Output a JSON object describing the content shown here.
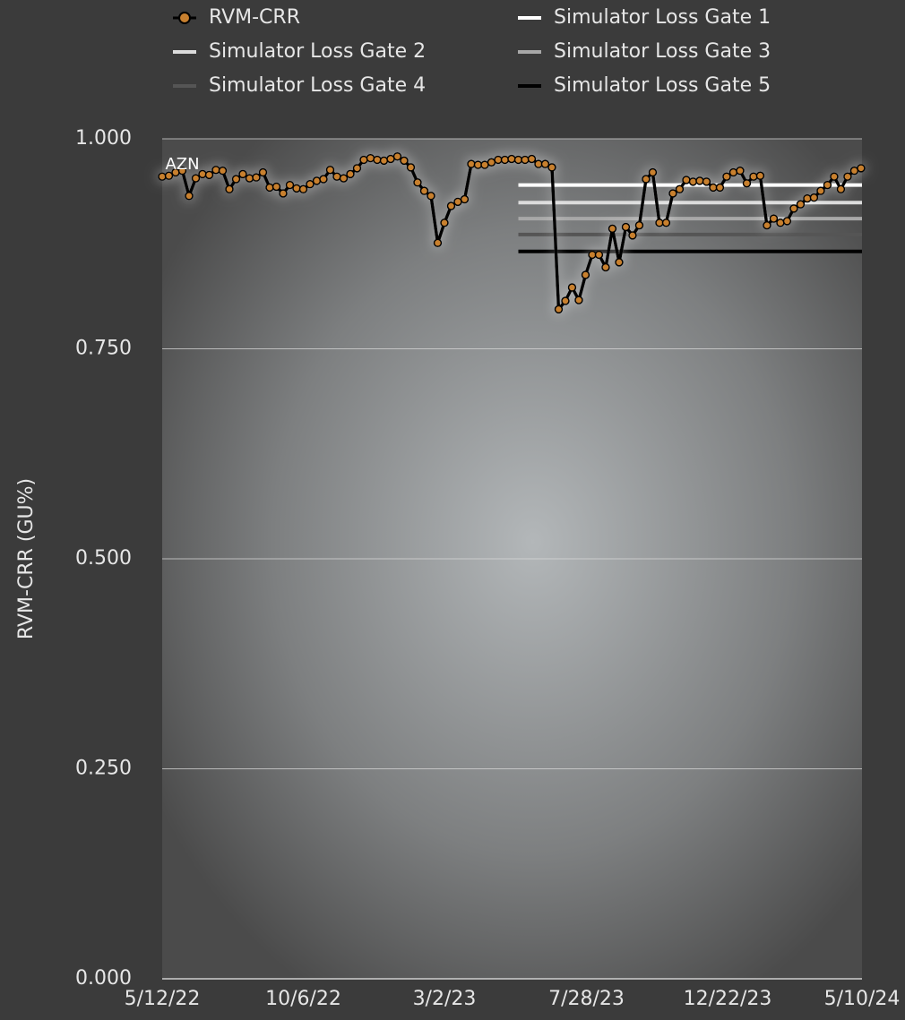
{
  "chart_data": {
    "type": "line",
    "ylabel": "RVM-CRR (GU%)",
    "annotations": [
      {
        "text": "AZN",
        "x": "5/19/22",
        "y": 0.97
      }
    ],
    "xlim": [
      "5/12/22",
      "5/10/24"
    ],
    "xticks": [
      "5/12/22",
      "10/6/22",
      "3/2/23",
      "7/28/23",
      "12/22/23",
      "5/10/24"
    ],
    "ylim": [
      0,
      1
    ],
    "yticks": [
      {
        "value": 0,
        "label": "0.000"
      },
      {
        "value": 0.25,
        "label": "0.250"
      },
      {
        "value": 0.5,
        "label": "0.500"
      },
      {
        "value": 0.75,
        "label": "0.750"
      },
      {
        "value": 1,
        "label": "1.000"
      }
    ],
    "grid": true,
    "series": [
      {
        "name": "RVM-CRR",
        "color": "#c8802f",
        "marker": true,
        "x": [
          "5/12/22",
          "5/19/22",
          "5/26/22",
          "6/2/22",
          "6/9/22",
          "6/16/22",
          "6/23/22",
          "6/30/22",
          "7/7/22",
          "7/14/22",
          "7/21/22",
          "7/28/22",
          "8/4/22",
          "8/11/22",
          "8/18/22",
          "8/25/22",
          "9/1/22",
          "9/8/22",
          "9/15/22",
          "9/22/22",
          "9/29/22",
          "10/6/22",
          "10/13/22",
          "10/20/22",
          "10/27/22",
          "11/3/22",
          "11/10/22",
          "11/17/22",
          "11/24/22",
          "12/1/22",
          "12/8/22",
          "12/15/22",
          "12/22/22",
          "12/29/22",
          "1/5/23",
          "1/12/23",
          "1/19/23",
          "1/26/23",
          "2/2/23",
          "2/9/23",
          "2/16/23",
          "2/23/23",
          "3/2/23",
          "3/9/23",
          "3/16/23",
          "3/23/23",
          "3/30/23",
          "4/6/23",
          "4/13/23",
          "4/20/23",
          "4/27/23",
          "5/4/23",
          "5/11/23",
          "5/18/23",
          "5/25/23",
          "6/1/23",
          "6/8/23",
          "6/15/23",
          "6/22/23",
          "6/29/23",
          "7/6/23",
          "7/13/23",
          "7/20/23",
          "7/27/23",
          "8/3/23",
          "8/10/23",
          "8/17/23",
          "8/24/23",
          "8/31/23",
          "9/7/23",
          "9/14/23",
          "9/21/23",
          "9/28/23",
          "10/5/23",
          "10/12/23",
          "10/19/23",
          "10/26/23",
          "11/2/23",
          "11/9/23",
          "11/16/23",
          "11/23/23",
          "11/30/23",
          "12/7/23",
          "12/14/23",
          "12/21/23",
          "12/28/23",
          "1/4/24",
          "1/11/24",
          "1/18/24",
          "1/25/24",
          "2/1/24",
          "2/8/24",
          "2/15/24",
          "2/22/24",
          "2/29/24",
          "3/7/24",
          "3/14/24",
          "3/21/24",
          "3/28/24",
          "4/4/24",
          "4/11/24",
          "4/18/24",
          "4/25/24",
          "5/2/24",
          "5/9/24"
        ],
        "values": [
          0.955,
          0.956,
          0.96,
          0.962,
          0.932,
          0.953,
          0.958,
          0.957,
          0.963,
          0.962,
          0.94,
          0.952,
          0.958,
          0.953,
          0.954,
          0.96,
          0.942,
          0.943,
          0.935,
          0.945,
          0.941,
          0.94,
          0.946,
          0.95,
          0.952,
          0.963,
          0.955,
          0.953,
          0.958,
          0.965,
          0.975,
          0.977,
          0.975,
          0.974,
          0.976,
          0.979,
          0.974,
          0.966,
          0.948,
          0.938,
          0.932,
          0.876,
          0.9,
          0.92,
          0.925,
          0.928,
          0.97,
          0.969,
          0.969,
          0.972,
          0.975,
          0.975,
          0.976,
          0.975,
          0.975,
          0.976,
          0.97,
          0.97,
          0.966,
          0.797,
          0.807,
          0.823,
          0.808,
          0.838,
          0.862,
          0.862,
          0.847,
          0.893,
          0.853,
          0.895,
          0.885,
          0.897,
          0.952,
          0.96,
          0.9,
          0.9,
          0.935,
          0.94,
          0.951,
          0.949,
          0.95,
          0.949,
          0.942,
          0.942,
          0.955,
          0.96,
          0.962,
          0.947,
          0.955,
          0.956,
          0.897,
          0.905,
          0.9,
          0.902,
          0.917,
          0.922,
          0.929,
          0.93,
          0.938,
          0.945,
          0.955,
          0.94,
          0.955,
          0.962,
          0.965
        ]
      },
      {
        "name": "Simulator Loss Gate 1",
        "color": "#ffffff",
        "x": [
          "5/18/23",
          "5/10/24"
        ],
        "values": [
          0.945,
          0.945
        ]
      },
      {
        "name": "Simulator Loss Gate 2",
        "color": "#dcdcdc",
        "x": [
          "5/18/23",
          "5/10/24"
        ],
        "values": [
          0.924,
          0.924
        ]
      },
      {
        "name": "Simulator Loss Gate 3",
        "color": "#a8a8a8",
        "x": [
          "5/18/23",
          "5/10/24"
        ],
        "values": [
          0.905,
          0.905
        ]
      },
      {
        "name": "Simulator Loss Gate 4",
        "color": "#555555",
        "x": [
          "5/18/23",
          "5/10/24"
        ],
        "values": [
          0.886,
          0.886
        ]
      },
      {
        "name": "Simulator Loss Gate 5",
        "color": "#000000",
        "x": [
          "5/18/23",
          "5/10/24"
        ],
        "values": [
          0.866,
          0.866
        ]
      }
    ]
  }
}
